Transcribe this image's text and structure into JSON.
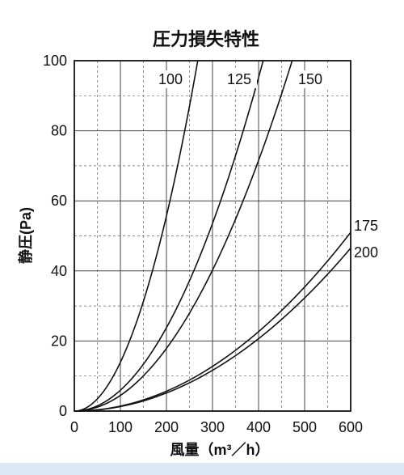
{
  "chart_data": {
    "type": "line",
    "title": "圧力損失特性",
    "xlabel": "風量（m³／h）",
    "ylabel": "静圧(Pa)",
    "xlim": [
      0,
      600
    ],
    "ylim": [
      0,
      100
    ],
    "x_ticks": [
      "0",
      "100",
      "200",
      "300",
      "400",
      "500",
      "600"
    ],
    "y_ticks": [
      "0",
      "20",
      "40",
      "60",
      "80",
      "100"
    ],
    "grid": true,
    "series": [
      {
        "name": "100",
        "x": [
          0,
          50,
          100,
          150,
          200,
          250,
          268
        ],
        "y": [
          0,
          3.5,
          14,
          31,
          56,
          87,
          100
        ]
      },
      {
        "name": "125",
        "x": [
          0,
          50,
          100,
          150,
          200,
          250,
          300,
          350,
          400,
          410
        ],
        "y": [
          0,
          1.5,
          6,
          13.4,
          24,
          37,
          54,
          73,
          95,
          100
        ]
      },
      {
        "name": "150",
        "x": [
          0,
          50,
          100,
          150,
          200,
          250,
          300,
          350,
          400,
          450,
          473
        ],
        "y": [
          0,
          1.1,
          4.5,
          10,
          18,
          28,
          40,
          55,
          72,
          90,
          100
        ]
      },
      {
        "name": "175",
        "x": [
          0,
          100,
          200,
          300,
          400,
          500,
          600
        ],
        "y": [
          0,
          1.4,
          5.6,
          12.5,
          22,
          34.5,
          51
        ]
      },
      {
        "name": "200",
        "x": [
          0,
          100,
          200,
          300,
          400,
          500,
          600
        ],
        "y": [
          0,
          1.2,
          5,
          11.5,
          20.5,
          32,
          46.5
        ]
      }
    ]
  }
}
